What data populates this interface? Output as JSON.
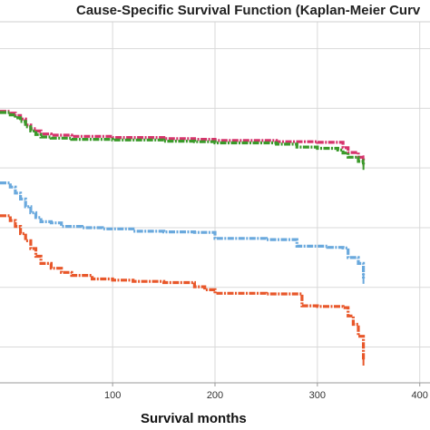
{
  "chart_data": {
    "type": "line",
    "title": "Cause-Specific Survival Function (Kaplan-Meier Curv",
    "xlabel": "Survival months",
    "ylabel": "",
    "xlim": [
      -10,
      410
    ],
    "ylim": [
      0.44,
      1.045
    ],
    "x_ticks": [
      100,
      200,
      300,
      400
    ],
    "x_tick_labels": [
      "100",
      "200",
      "300",
      "400"
    ],
    "y_gridlines": [
      0.5,
      0.6,
      0.7,
      0.8,
      0.9,
      1.0
    ],
    "grid": true,
    "series": [
      {
        "color": "#d6336c",
        "points": [
          [
            -10,
            0.895
          ],
          [
            0,
            0.892
          ],
          [
            5,
            0.888
          ],
          [
            10,
            0.882
          ],
          [
            15,
            0.872
          ],
          [
            20,
            0.866
          ],
          [
            25,
            0.862
          ],
          [
            30,
            0.857
          ],
          [
            40,
            0.855
          ],
          [
            60,
            0.853
          ],
          [
            100,
            0.851
          ],
          [
            150,
            0.849
          ],
          [
            180,
            0.848
          ],
          [
            200,
            0.846
          ],
          [
            260,
            0.844
          ],
          [
            300,
            0.843
          ],
          [
            322,
            0.843
          ],
          [
            325,
            0.834
          ],
          [
            330,
            0.826
          ],
          [
            340,
            0.818
          ],
          [
            345,
            0.812
          ]
        ]
      },
      {
        "color": "#3a9a2a",
        "points": [
          [
            -10,
            0.893
          ],
          [
            0,
            0.889
          ],
          [
            5,
            0.884
          ],
          [
            10,
            0.878
          ],
          [
            15,
            0.869
          ],
          [
            20,
            0.862
          ],
          [
            25,
            0.856
          ],
          [
            30,
            0.852
          ],
          [
            40,
            0.85
          ],
          [
            60,
            0.848
          ],
          [
            100,
            0.847
          ],
          [
            150,
            0.845
          ],
          [
            180,
            0.844
          ],
          [
            200,
            0.842
          ],
          [
            260,
            0.84
          ],
          [
            280,
            0.835
          ],
          [
            300,
            0.833
          ],
          [
            320,
            0.83
          ],
          [
            325,
            0.825
          ],
          [
            330,
            0.818
          ],
          [
            340,
            0.811
          ],
          [
            345,
            0.806
          ]
        ]
      },
      {
        "color": "#6aa9dd",
        "points": [
          [
            -10,
            0.775
          ],
          [
            0,
            0.768
          ],
          [
            5,
            0.758
          ],
          [
            10,
            0.748
          ],
          [
            15,
            0.735
          ],
          [
            20,
            0.725
          ],
          [
            25,
            0.717
          ],
          [
            30,
            0.71
          ],
          [
            40,
            0.708
          ],
          [
            50,
            0.702
          ],
          [
            70,
            0.7
          ],
          [
            90,
            0.698
          ],
          [
            120,
            0.694
          ],
          [
            150,
            0.693
          ],
          [
            180,
            0.692
          ],
          [
            200,
            0.682
          ],
          [
            250,
            0.68
          ],
          [
            280,
            0.669
          ],
          [
            310,
            0.667
          ],
          [
            325,
            0.666
          ],
          [
            330,
            0.65
          ],
          [
            340,
            0.64
          ],
          [
            345,
            0.615
          ]
        ]
      },
      {
        "color": "#e8572a",
        "points": [
          [
            -10,
            0.72
          ],
          [
            0,
            0.712
          ],
          [
            5,
            0.702
          ],
          [
            10,
            0.69
          ],
          [
            15,
            0.678
          ],
          [
            20,
            0.665
          ],
          [
            25,
            0.652
          ],
          [
            30,
            0.64
          ],
          [
            40,
            0.632
          ],
          [
            50,
            0.625
          ],
          [
            60,
            0.62
          ],
          [
            80,
            0.614
          ],
          [
            100,
            0.612
          ],
          [
            120,
            0.61
          ],
          [
            150,
            0.608
          ],
          [
            180,
            0.601
          ],
          [
            190,
            0.596
          ],
          [
            200,
            0.59
          ],
          [
            250,
            0.589
          ],
          [
            280,
            0.589
          ],
          [
            285,
            0.569
          ],
          [
            300,
            0.568
          ],
          [
            325,
            0.566
          ],
          [
            330,
            0.552
          ],
          [
            335,
            0.538
          ],
          [
            340,
            0.518
          ],
          [
            345,
            0.478
          ]
        ]
      }
    ]
  }
}
